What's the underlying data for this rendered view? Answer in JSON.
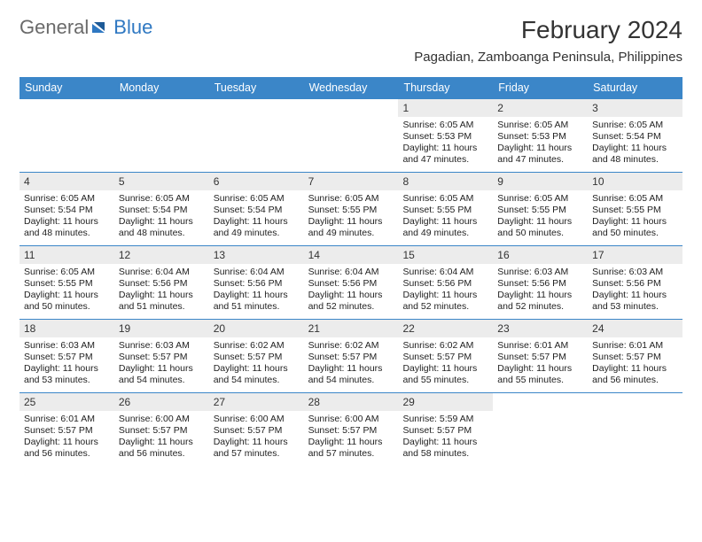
{
  "logo": {
    "text1": "General",
    "text2": "Blue"
  },
  "title": "February 2024",
  "location": "Pagadian, Zamboanga Peninsula, Philippines",
  "colors": {
    "header_bg": "#3b86c8",
    "header_fg": "#ffffff",
    "daynum_bg": "#ececec",
    "row_border": "#3b86c8",
    "text": "#222222",
    "logo_gray": "#6a6a6a",
    "logo_blue": "#2f78c2"
  },
  "day_headers": [
    "Sunday",
    "Monday",
    "Tuesday",
    "Wednesday",
    "Thursday",
    "Friday",
    "Saturday"
  ],
  "weeks": [
    [
      null,
      null,
      null,
      null,
      {
        "n": "1",
        "sr": "Sunrise: 6:05 AM",
        "ss": "Sunset: 5:53 PM",
        "dl": "Daylight: 11 hours and 47 minutes."
      },
      {
        "n": "2",
        "sr": "Sunrise: 6:05 AM",
        "ss": "Sunset: 5:53 PM",
        "dl": "Daylight: 11 hours and 47 minutes."
      },
      {
        "n": "3",
        "sr": "Sunrise: 6:05 AM",
        "ss": "Sunset: 5:54 PM",
        "dl": "Daylight: 11 hours and 48 minutes."
      }
    ],
    [
      {
        "n": "4",
        "sr": "Sunrise: 6:05 AM",
        "ss": "Sunset: 5:54 PM",
        "dl": "Daylight: 11 hours and 48 minutes."
      },
      {
        "n": "5",
        "sr": "Sunrise: 6:05 AM",
        "ss": "Sunset: 5:54 PM",
        "dl": "Daylight: 11 hours and 48 minutes."
      },
      {
        "n": "6",
        "sr": "Sunrise: 6:05 AM",
        "ss": "Sunset: 5:54 PM",
        "dl": "Daylight: 11 hours and 49 minutes."
      },
      {
        "n": "7",
        "sr": "Sunrise: 6:05 AM",
        "ss": "Sunset: 5:55 PM",
        "dl": "Daylight: 11 hours and 49 minutes."
      },
      {
        "n": "8",
        "sr": "Sunrise: 6:05 AM",
        "ss": "Sunset: 5:55 PM",
        "dl": "Daylight: 11 hours and 49 minutes."
      },
      {
        "n": "9",
        "sr": "Sunrise: 6:05 AM",
        "ss": "Sunset: 5:55 PM",
        "dl": "Daylight: 11 hours and 50 minutes."
      },
      {
        "n": "10",
        "sr": "Sunrise: 6:05 AM",
        "ss": "Sunset: 5:55 PM",
        "dl": "Daylight: 11 hours and 50 minutes."
      }
    ],
    [
      {
        "n": "11",
        "sr": "Sunrise: 6:05 AM",
        "ss": "Sunset: 5:55 PM",
        "dl": "Daylight: 11 hours and 50 minutes."
      },
      {
        "n": "12",
        "sr": "Sunrise: 6:04 AM",
        "ss": "Sunset: 5:56 PM",
        "dl": "Daylight: 11 hours and 51 minutes."
      },
      {
        "n": "13",
        "sr": "Sunrise: 6:04 AM",
        "ss": "Sunset: 5:56 PM",
        "dl": "Daylight: 11 hours and 51 minutes."
      },
      {
        "n": "14",
        "sr": "Sunrise: 6:04 AM",
        "ss": "Sunset: 5:56 PM",
        "dl": "Daylight: 11 hours and 52 minutes."
      },
      {
        "n": "15",
        "sr": "Sunrise: 6:04 AM",
        "ss": "Sunset: 5:56 PM",
        "dl": "Daylight: 11 hours and 52 minutes."
      },
      {
        "n": "16",
        "sr": "Sunrise: 6:03 AM",
        "ss": "Sunset: 5:56 PM",
        "dl": "Daylight: 11 hours and 52 minutes."
      },
      {
        "n": "17",
        "sr": "Sunrise: 6:03 AM",
        "ss": "Sunset: 5:56 PM",
        "dl": "Daylight: 11 hours and 53 minutes."
      }
    ],
    [
      {
        "n": "18",
        "sr": "Sunrise: 6:03 AM",
        "ss": "Sunset: 5:57 PM",
        "dl": "Daylight: 11 hours and 53 minutes."
      },
      {
        "n": "19",
        "sr": "Sunrise: 6:03 AM",
        "ss": "Sunset: 5:57 PM",
        "dl": "Daylight: 11 hours and 54 minutes."
      },
      {
        "n": "20",
        "sr": "Sunrise: 6:02 AM",
        "ss": "Sunset: 5:57 PM",
        "dl": "Daylight: 11 hours and 54 minutes."
      },
      {
        "n": "21",
        "sr": "Sunrise: 6:02 AM",
        "ss": "Sunset: 5:57 PM",
        "dl": "Daylight: 11 hours and 54 minutes."
      },
      {
        "n": "22",
        "sr": "Sunrise: 6:02 AM",
        "ss": "Sunset: 5:57 PM",
        "dl": "Daylight: 11 hours and 55 minutes."
      },
      {
        "n": "23",
        "sr": "Sunrise: 6:01 AM",
        "ss": "Sunset: 5:57 PM",
        "dl": "Daylight: 11 hours and 55 minutes."
      },
      {
        "n": "24",
        "sr": "Sunrise: 6:01 AM",
        "ss": "Sunset: 5:57 PM",
        "dl": "Daylight: 11 hours and 56 minutes."
      }
    ],
    [
      {
        "n": "25",
        "sr": "Sunrise: 6:01 AM",
        "ss": "Sunset: 5:57 PM",
        "dl": "Daylight: 11 hours and 56 minutes."
      },
      {
        "n": "26",
        "sr": "Sunrise: 6:00 AM",
        "ss": "Sunset: 5:57 PM",
        "dl": "Daylight: 11 hours and 56 minutes."
      },
      {
        "n": "27",
        "sr": "Sunrise: 6:00 AM",
        "ss": "Sunset: 5:57 PM",
        "dl": "Daylight: 11 hours and 57 minutes."
      },
      {
        "n": "28",
        "sr": "Sunrise: 6:00 AM",
        "ss": "Sunset: 5:57 PM",
        "dl": "Daylight: 11 hours and 57 minutes."
      },
      {
        "n": "29",
        "sr": "Sunrise: 5:59 AM",
        "ss": "Sunset: 5:57 PM",
        "dl": "Daylight: 11 hours and 58 minutes."
      },
      null,
      null
    ]
  ]
}
